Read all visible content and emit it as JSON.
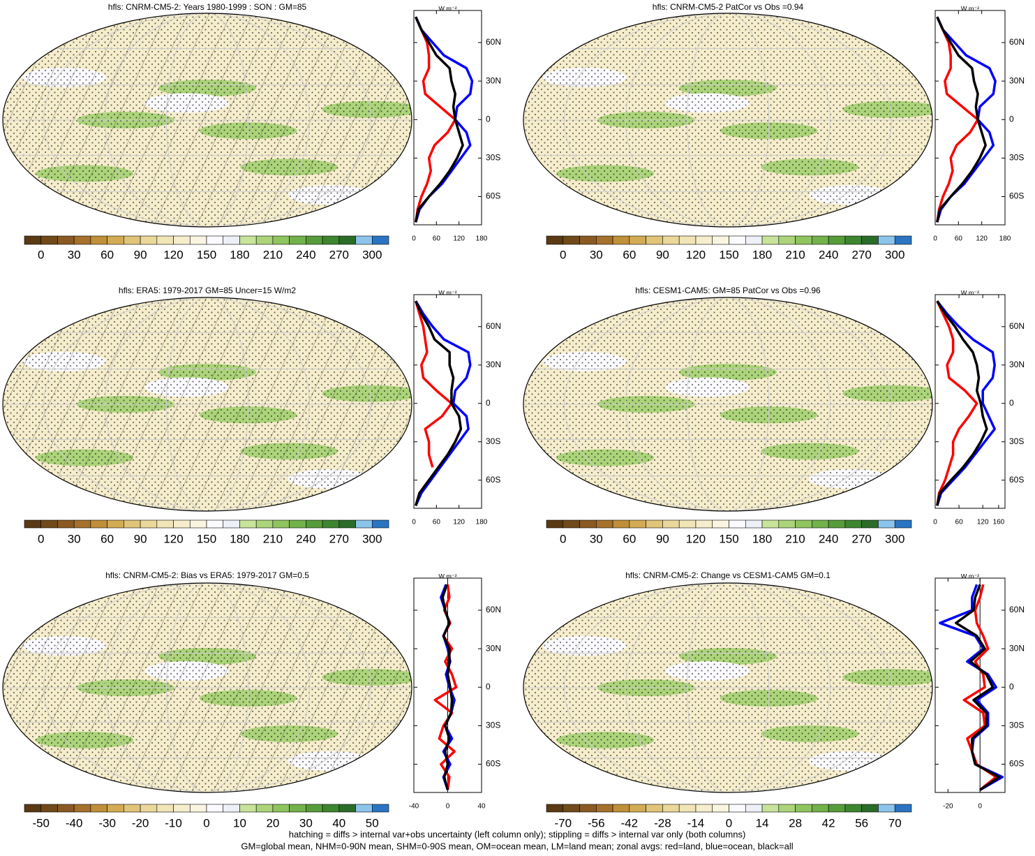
{
  "palette": [
    "#5a3a12",
    "#704a1a",
    "#8a5a22",
    "#a6712c",
    "#c08f3a",
    "#d3ab55",
    "#e0c478",
    "#ead79a",
    "#f1e4b6",
    "#f6edcc",
    "#faf5e0",
    "#fbfbff",
    "#eef0f8",
    "#c8e39a",
    "#acd47a",
    "#8fc45e",
    "#72b24a",
    "#579c3a",
    "#3e8530",
    "#2a6c28",
    "#8cc4ec",
    "#2b74c4"
  ],
  "notes": [
    "hatching = diffs > internal var+obs uncertainty (left column only); stippling = diffs > internal var only (both columns)",
    "GM=global mean, NHM=0-90N mean, SHM=0-90S mean, OM=ocean mean, LM=land mean; zonal avgs: red=land, blue=ocean, black=all"
  ],
  "chart_data": [
    {
      "type": "map",
      "title": "hfls: CNRM-CM5-2: Years 1980-1999 : SON : GM=85",
      "colorbar_lim": [
        -15,
        315
      ],
      "colorbar_ticks": [
        0,
        30,
        60,
        90,
        120,
        150,
        180,
        210,
        240,
        270,
        300
      ]
    },
    {
      "type": "line",
      "ylabel": "W m⁻²",
      "x": [
        -80,
        -70,
        -60,
        -50,
        -40,
        -30,
        -20,
        -10,
        0,
        10,
        20,
        30,
        40,
        50,
        60,
        70,
        80
      ],
      "xlim": [
        -82,
        85
      ],
      "xticks": [
        {
          "value": -60,
          "label": "60S"
        },
        {
          "value": -30,
          "label": "30S"
        },
        0,
        {
          "value": 30,
          "label": "30N"
        },
        {
          "value": 60,
          "label": "60N"
        }
      ],
      "ylim": [
        0,
        180
      ],
      "yticks": [
        0,
        60,
        120,
        180
      ],
      "series": [
        {
          "color": "#ff0000",
          "values": [
            5,
            10,
            20,
            35,
            45,
            40,
            55,
            90,
            110,
            70,
            30,
            25,
            40,
            40,
            35,
            20,
            5
          ]
        },
        {
          "color": "#0000ff",
          "values": [
            5,
            15,
            40,
            75,
            100,
            125,
            150,
            140,
            110,
            115,
            150,
            155,
            140,
            80,
            50,
            20,
            5
          ]
        },
        {
          "color": "#000000",
          "values": [
            5,
            12,
            40,
            70,
            95,
            115,
            130,
            120,
            110,
            105,
            110,
            100,
            95,
            60,
            40,
            20,
            5
          ]
        }
      ]
    },
    {
      "type": "map",
      "title": "hfls: CNRM-CM5-2 PatCor vs Obs =0.94",
      "colorbar_lim": [
        -15,
        315
      ],
      "colorbar_ticks": [
        0,
        30,
        60,
        90,
        120,
        150,
        180,
        210,
        240,
        270,
        300
      ]
    },
    {
      "type": "line",
      "ylabel": "W m⁻²",
      "x": [
        -80,
        -70,
        -60,
        -50,
        -40,
        -30,
        -20,
        -10,
        0,
        10,
        20,
        30,
        40,
        50,
        60,
        70,
        80
      ],
      "xlim": [
        -82,
        85
      ],
      "xticks": [
        {
          "value": -60,
          "label": "60S"
        },
        {
          "value": -30,
          "label": "30S"
        },
        0,
        {
          "value": 30,
          "label": "30N"
        },
        {
          "value": 60,
          "label": "60N"
        }
      ],
      "ylim": [
        0,
        180
      ],
      "yticks": [
        0,
        60,
        120,
        180
      ],
      "series": [
        {
          "color": "#ff0000",
          "values": [
            5,
            10,
            20,
            35,
            45,
            40,
            55,
            90,
            110,
            70,
            30,
            25,
            40,
            40,
            35,
            20,
            5
          ]
        },
        {
          "color": "#0000ff",
          "values": [
            5,
            15,
            40,
            75,
            100,
            125,
            150,
            140,
            110,
            115,
            150,
            155,
            140,
            80,
            50,
            20,
            5
          ]
        },
        {
          "color": "#000000",
          "values": [
            5,
            12,
            40,
            70,
            95,
            115,
            130,
            120,
            110,
            105,
            110,
            100,
            95,
            60,
            40,
            20,
            5
          ]
        }
      ]
    },
    {
      "type": "map",
      "title": "hfls: ERA5: 1979-2017 GM=85 Uncer=15 W/m2",
      "colorbar_lim": [
        -15,
        315
      ],
      "colorbar_ticks": [
        0,
        30,
        60,
        90,
        120,
        150,
        180,
        210,
        240,
        270,
        300
      ]
    },
    {
      "type": "line",
      "ylabel": "W m⁻²",
      "x": [
        -80,
        -70,
        -60,
        -50,
        -40,
        -30,
        -20,
        -10,
        0,
        10,
        20,
        30,
        40,
        50,
        60,
        70,
        80
      ],
      "xlim": [
        -82,
        85
      ],
      "xticks": [
        {
          "value": -60,
          "label": "60S"
        },
        {
          "value": -30,
          "label": "30S"
        },
        0,
        {
          "value": 30,
          "label": "30N"
        },
        {
          "value": 60,
          "label": "60N"
        }
      ],
      "ylim": [
        0,
        180
      ],
      "yticks": [
        0,
        60,
        120,
        180
      ],
      "series": [
        {
          "color": "#ff0000",
          "values": [
            5,
            15,
            null,
            50,
            40,
            40,
            30,
            75,
            100,
            60,
            25,
            20,
            35,
            30,
            25,
            15,
            5
          ]
        },
        {
          "color": "#0000ff",
          "values": [
            5,
            20,
            45,
            70,
            95,
            120,
            145,
            140,
            105,
            110,
            140,
            150,
            145,
            80,
            50,
            25,
            5
          ]
        },
        {
          "color": "#000000",
          "values": [
            5,
            15,
            40,
            65,
            90,
            110,
            125,
            120,
            100,
            100,
            105,
            95,
            95,
            55,
            40,
            20,
            5
          ]
        }
      ]
    },
    {
      "type": "map",
      "title": "hfls: CESM1-CAM5: GM=85 PatCor vs Obs =0.96",
      "colorbar_lim": [
        -15,
        315
      ],
      "colorbar_ticks": [
        0,
        30,
        60,
        90,
        120,
        150,
        180,
        210,
        240,
        270,
        300
      ]
    },
    {
      "type": "line",
      "ylabel": "W m⁻²",
      "x": [
        -80,
        -70,
        -60,
        -50,
        -40,
        -30,
        -20,
        -10,
        0,
        10,
        20,
        30,
        40,
        50,
        60,
        70,
        80
      ],
      "xlim": [
        -82,
        85
      ],
      "xticks": [
        {
          "value": -60,
          "label": "60S"
        },
        {
          "value": -30,
          "label": "30S"
        },
        0,
        {
          "value": 30,
          "label": "30N"
        },
        {
          "value": 60,
          "label": "60N"
        }
      ],
      "ylim": [
        0,
        176
      ],
      "yticks": [
        0,
        60,
        120,
        160
      ],
      "series": [
        {
          "color": "#ff0000",
          "values": [
            5,
            10,
            25,
            35,
            45,
            45,
            60,
            85,
            105,
            75,
            35,
            30,
            45,
            45,
            35,
            20,
            5
          ]
        },
        {
          "color": "#0000ff",
          "values": [
            5,
            15,
            45,
            75,
            100,
            125,
            150,
            135,
            120,
            120,
            145,
            150,
            145,
            95,
            60,
            30,
            5
          ]
        },
        {
          "color": "#000000",
          "values": [
            5,
            12,
            40,
            70,
            95,
            115,
            130,
            120,
            115,
            105,
            110,
            105,
            95,
            70,
            50,
            25,
            5
          ]
        }
      ]
    },
    {
      "type": "map",
      "title": "hfls: CNRM-CM5-2: Bias vs ERA5: 1979-2017  GM=0.5",
      "colorbar_lim": [
        -55,
        55
      ],
      "colorbar_ticks": [
        -50,
        -40,
        -30,
        -20,
        -10,
        0,
        10,
        20,
        30,
        40,
        50
      ]
    },
    {
      "type": "line",
      "ylabel": "W m⁻²",
      "x": [
        -80,
        -70,
        -60,
        -50,
        -40,
        -30,
        -20,
        -10,
        0,
        10,
        20,
        30,
        40,
        50,
        60,
        70,
        80
      ],
      "xlim": [
        -82,
        85
      ],
      "xticks": [
        {
          "value": -60,
          "label": "60S"
        },
        {
          "value": -30,
          "label": "30S"
        },
        0,
        {
          "value": 30,
          "label": "30N"
        },
        {
          "value": 60,
          "label": "60N"
        }
      ],
      "ylim": [
        -40,
        40
      ],
      "yticks": [
        -40,
        0,
        40
      ],
      "series": [
        {
          "color": "#ff0000",
          "values": [
            0,
            2,
            -8,
            8,
            -10,
            -5,
            5,
            -15,
            10,
            5,
            -3,
            5,
            -5,
            3,
            -4,
            2,
            0
          ]
        },
        {
          "color": "#0000ff",
          "values": [
            0,
            -5,
            3,
            -5,
            5,
            -3,
            4,
            8,
            2,
            -2,
            3,
            0,
            -5,
            2,
            -3,
            -8,
            -2
          ]
        },
        {
          "color": "#000000",
          "values": [
            0,
            -4,
            0,
            -3,
            2,
            -3,
            4,
            5,
            3,
            0,
            2,
            2,
            -5,
            2,
            -3,
            -6,
            -1
          ]
        }
      ]
    },
    {
      "type": "map",
      "title": "hfls: CNRM-CM5-2: Change vs CESM1-CAM5 GM=0.1",
      "colorbar_lim": [
        -77,
        77
      ],
      "colorbar_ticks": [
        -70,
        -56,
        -42,
        -28,
        -14,
        0,
        14,
        28,
        42,
        56,
        70
      ]
    },
    {
      "type": "line",
      "ylabel": "W m⁻²",
      "x": [
        -80,
        -70,
        -60,
        -50,
        -40,
        -30,
        -20,
        -10,
        0,
        10,
        20,
        30,
        40,
        50,
        60,
        70,
        80
      ],
      "xlim": [
        -82,
        85
      ],
      "xticks": [
        {
          "value": -60,
          "label": "60S"
        },
        {
          "value": -30,
          "label": "30S"
        },
        0,
        {
          "value": 30,
          "label": "30N"
        },
        {
          "value": 60,
          "label": "60N"
        }
      ],
      "ylim": [
        -28,
        15.6
      ],
      "yticks": [
        -20,
        0
      ],
      "series": [
        {
          "color": "#ff0000",
          "values": [
            0,
            10,
            -2,
            -5,
            -8,
            3,
            2,
            -10,
            3,
            2,
            -3,
            5,
            2,
            -2,
            -3,
            0,
            2
          ]
        },
        {
          "color": "#0000ff",
          "values": [
            0,
            14,
            -3,
            -5,
            -4,
            5,
            5,
            -2,
            10,
            5,
            -8,
            2,
            -3,
            -25,
            -5,
            -5,
            -2
          ]
        },
        {
          "color": "#000000",
          "values": [
            0,
            12,
            -3,
            -5,
            -5,
            4,
            4,
            -4,
            8,
            4,
            -6,
            3,
            -2,
            -15,
            -4,
            -3,
            0
          ]
        }
      ]
    }
  ]
}
